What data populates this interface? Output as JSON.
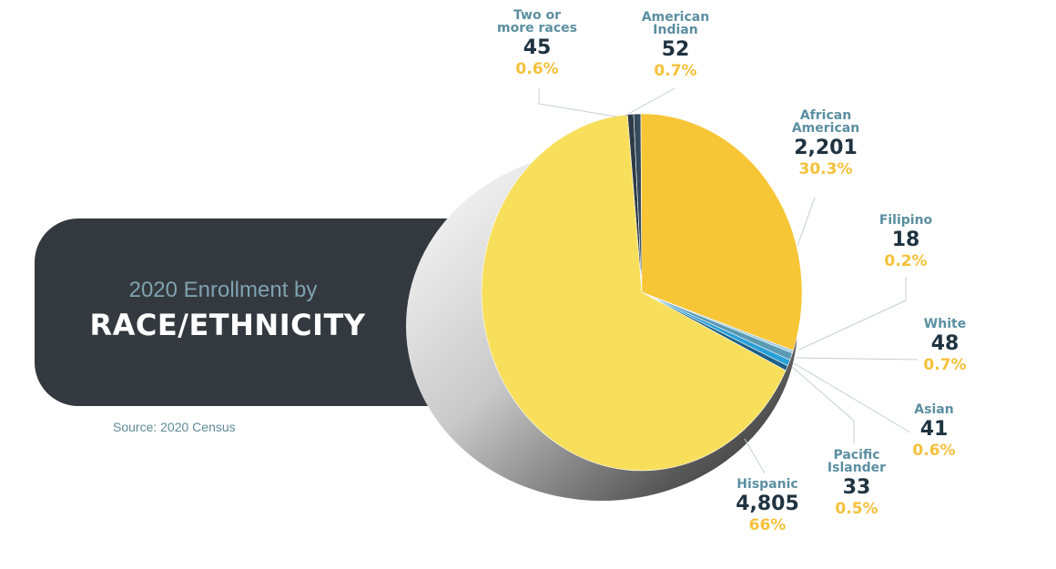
{
  "header": {
    "subtitle": "2020 Enrollment by",
    "title": "RACE/ETHNICITY",
    "source": "Source: 2020 Census"
  },
  "chart_data": {
    "type": "pie",
    "slices": [
      {
        "label": "Two or more races",
        "count": "45",
        "percent": "0.6%",
        "value": 45,
        "color": "#2e3b47"
      },
      {
        "label": "American Indian",
        "count": "52",
        "percent": "0.7%",
        "value": 52,
        "color": "#344a5a"
      },
      {
        "label": "African American",
        "count": "2,201",
        "percent": "30.3%",
        "value": 2201,
        "color": "#f7c636"
      },
      {
        "label": "Filipino",
        "count": "18",
        "percent": "0.2%",
        "value": 18,
        "color": "#9ccde0"
      },
      {
        "label": "White",
        "count": "48",
        "percent": "0.7%",
        "value": 48,
        "color": "#5b9ab3"
      },
      {
        "label": "Asian",
        "count": "41",
        "percent": "0.6%",
        "value": 41,
        "color": "#2aa0d8"
      },
      {
        "label": "Pacific Islander",
        "count": "33",
        "percent": "0.5%",
        "value": 33,
        "color": "#1d5f86"
      },
      {
        "label": "Hispanic",
        "count": "4,805",
        "percent": "66%",
        "value": 4805,
        "color": "#f7df5c"
      }
    ],
    "label_lines": {
      "two_or_more": [
        "Two or",
        "more races"
      ],
      "american_indian": [
        "American",
        "Indian"
      ],
      "african_american": [
        "African",
        "American"
      ],
      "pacific_islander": [
        "Pacific",
        "Islander"
      ]
    }
  }
}
